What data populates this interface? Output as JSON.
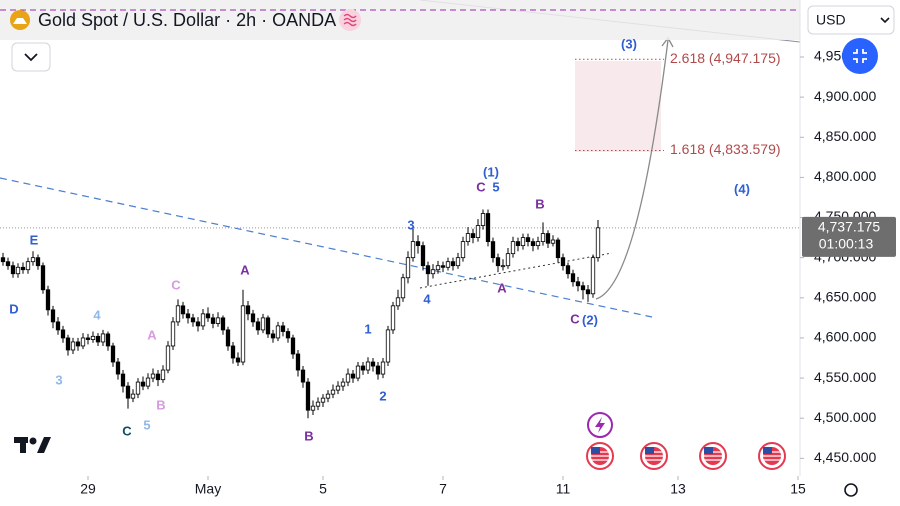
{
  "chart_data": {
    "type": "candlestick",
    "title": "Gold Spot / U.S. Dollar · 2h · OANDA",
    "currency": "USD",
    "up_color": "#ffffff",
    "down_color": "#000000",
    "wick_color": "#000000",
    "xlim": [
      -0.6,
      159.4
    ],
    "xticks": [
      {
        "value": 17,
        "label": "29"
      },
      {
        "value": 41,
        "label": "May"
      },
      {
        "value": 64,
        "label": "5"
      },
      {
        "value": 88,
        "label": "7"
      },
      {
        "value": 112,
        "label": "11"
      },
      {
        "value": 135,
        "label": "13"
      },
      {
        "value": 159,
        "label": "15"
      }
    ],
    "ylim": [
      4428,
      5021
    ],
    "yticks": [
      {
        "value": 4450,
        "label": "4,450.000"
      },
      {
        "value": 4500,
        "label": "4,500.000"
      },
      {
        "value": 4550,
        "label": "4,550.000"
      },
      {
        "value": 4600,
        "label": "4,600.000"
      },
      {
        "value": 4650,
        "label": "4,650.000"
      },
      {
        "value": 4700,
        "label": "4,700.000"
      },
      {
        "value": 4750,
        "label": "4,750.000"
      },
      {
        "value": 4800,
        "label": "4,800.000"
      },
      {
        "value": 4850,
        "label": "4,850.000"
      },
      {
        "value": 4900,
        "label": "4,900.000"
      },
      {
        "value": 4950,
        "label": "4,950.000"
      }
    ],
    "ohlc": [
      [
        4700,
        4706,
        4690,
        4695
      ],
      [
        4695,
        4700,
        4685,
        4690
      ],
      [
        4690,
        4695,
        4675,
        4680
      ],
      [
        4680,
        4693,
        4675,
        4688
      ],
      [
        4688,
        4694,
        4680,
        4685
      ],
      [
        4685,
        4700,
        4680,
        4695
      ],
      [
        4695,
        4708,
        4690,
        4700
      ],
      [
        4700,
        4704,
        4685,
        4690
      ],
      [
        4690,
        4694,
        4655,
        4660
      ],
      [
        4660,
        4665,
        4628,
        4635
      ],
      [
        4635,
        4640,
        4612,
        4620
      ],
      [
        4620,
        4626,
        4604,
        4610
      ],
      [
        4610,
        4615,
        4594,
        4600
      ],
      [
        4600,
        4604,
        4578,
        4585
      ],
      [
        4585,
        4600,
        4580,
        4595
      ],
      [
        4595,
        4600,
        4584,
        4590
      ],
      [
        4590,
        4606,
        4586,
        4600
      ],
      [
        4600,
        4605,
        4592,
        4598
      ],
      [
        4598,
        4608,
        4594,
        4602
      ],
      [
        4602,
        4606,
        4590,
        4595
      ],
      [
        4595,
        4610,
        4590,
        4605
      ],
      [
        4605,
        4608,
        4584,
        4590
      ],
      [
        4590,
        4594,
        4564,
        4570
      ],
      [
        4570,
        4575,
        4548,
        4555
      ],
      [
        4555,
        4560,
        4532,
        4540
      ],
      [
        4540,
        4545,
        4512,
        4525
      ],
      [
        4525,
        4536,
        4520,
        4530
      ],
      [
        4530,
        4550,
        4525,
        4545
      ],
      [
        4545,
        4552,
        4535,
        4540
      ],
      [
        4540,
        4556,
        4536,
        4550
      ],
      [
        4550,
        4562,
        4545,
        4555
      ],
      [
        4555,
        4560,
        4540,
        4548
      ],
      [
        4548,
        4566,
        4544,
        4560
      ],
      [
        4560,
        4596,
        4556,
        4590
      ],
      [
        4590,
        4626,
        4585,
        4620
      ],
      [
        4620,
        4648,
        4615,
        4640
      ],
      [
        4640,
        4645,
        4624,
        4630
      ],
      [
        4630,
        4636,
        4618,
        4625
      ],
      [
        4625,
        4630,
        4614,
        4620
      ],
      [
        4620,
        4626,
        4608,
        4615
      ],
      [
        4615,
        4636,
        4610,
        4630
      ],
      [
        4630,
        4638,
        4620,
        4625
      ],
      [
        4625,
        4630,
        4612,
        4618
      ],
      [
        4618,
        4632,
        4614,
        4625
      ],
      [
        4625,
        4628,
        4604,
        4610
      ],
      [
        4610,
        4614,
        4584,
        4590
      ],
      [
        4590,
        4595,
        4568,
        4575
      ],
      [
        4575,
        4582,
        4565,
        4570
      ],
      [
        4570,
        4660,
        4566,
        4640
      ],
      [
        4640,
        4646,
        4622,
        4630
      ],
      [
        4630,
        4635,
        4614,
        4620
      ],
      [
        4620,
        4625,
        4604,
        4610
      ],
      [
        4610,
        4630,
        4606,
        4625
      ],
      [
        4625,
        4628,
        4600,
        4605
      ],
      [
        4605,
        4610,
        4594,
        4600
      ],
      [
        4600,
        4620,
        4596,
        4615
      ],
      [
        4615,
        4620,
        4602,
        4608
      ],
      [
        4608,
        4612,
        4594,
        4600
      ],
      [
        4600,
        4604,
        4574,
        4580
      ],
      [
        4580,
        4585,
        4552,
        4560
      ],
      [
        4560,
        4565,
        4538,
        4545
      ],
      [
        4545,
        4550,
        4500,
        4510
      ],
      [
        4510,
        4522,
        4504,
        4515
      ],
      [
        4515,
        4526,
        4510,
        4520
      ],
      [
        4520,
        4530,
        4514,
        4525
      ],
      [
        4525,
        4535,
        4520,
        4530
      ],
      [
        4530,
        4542,
        4525,
        4535
      ],
      [
        4535,
        4546,
        4530,
        4540
      ],
      [
        4540,
        4550,
        4534,
        4545
      ],
      [
        4545,
        4562,
        4540,
        4555
      ],
      [
        4555,
        4560,
        4544,
        4550
      ],
      [
        4550,
        4570,
        4546,
        4565
      ],
      [
        4565,
        4570,
        4554,
        4560
      ],
      [
        4560,
        4576,
        4555,
        4570
      ],
      [
        4570,
        4575,
        4558,
        4565
      ],
      [
        4565,
        4570,
        4548,
        4555
      ],
      [
        4555,
        4575,
        4550,
        4570
      ],
      [
        4570,
        4615,
        4565,
        4610
      ],
      [
        4610,
        4645,
        4605,
        4640
      ],
      [
        4640,
        4660,
        4635,
        4650
      ],
      [
        4650,
        4680,
        4645,
        4675
      ],
      [
        4675,
        4708,
        4668,
        4700
      ],
      [
        4700,
        4740,
        4695,
        4720
      ],
      [
        4720,
        4728,
        4705,
        4715
      ],
      [
        4715,
        4720,
        4684,
        4690
      ],
      [
        4690,
        4695,
        4665,
        4680
      ],
      [
        4680,
        4692,
        4674,
        4685
      ],
      [
        4685,
        4696,
        4680,
        4690
      ],
      [
        4690,
        4695,
        4682,
        4688
      ],
      [
        4688,
        4700,
        4684,
        4695
      ],
      [
        4695,
        4700,
        4684,
        4690
      ],
      [
        4690,
        4706,
        4686,
        4700
      ],
      [
        4700,
        4726,
        4695,
        4720
      ],
      [
        4720,
        4738,
        4715,
        4730
      ],
      [
        4730,
        4736,
        4718,
        4725
      ],
      [
        4725,
        4748,
        4720,
        4740
      ],
      [
        4740,
        4760,
        4735,
        4755
      ],
      [
        4755,
        4760,
        4714,
        4720
      ],
      [
        4720,
        4725,
        4694,
        4700
      ],
      [
        4700,
        4705,
        4682,
        4690
      ],
      [
        4690,
        4698,
        4684,
        4690
      ],
      [
        4690,
        4712,
        4686,
        4705
      ],
      [
        4705,
        4726,
        4700,
        4720
      ],
      [
        4720,
        4725,
        4708,
        4715
      ],
      [
        4715,
        4730,
        4710,
        4725
      ],
      [
        4725,
        4730,
        4714,
        4720
      ],
      [
        4720,
        4724,
        4708,
        4715
      ],
      [
        4715,
        4726,
        4710,
        4720
      ],
      [
        4720,
        4744,
        4715,
        4730
      ],
      [
        4730,
        4734,
        4712,
        4718
      ],
      [
        4718,
        4728,
        4714,
        4722
      ],
      [
        4722,
        4725,
        4694,
        4700
      ],
      [
        4700,
        4705,
        4684,
        4690
      ],
      [
        4690,
        4694,
        4674,
        4680
      ],
      [
        4680,
        4685,
        4664,
        4670
      ],
      [
        4670,
        4676,
        4658,
        4665
      ],
      [
        4665,
        4670,
        4648,
        4660
      ],
      [
        4660,
        4666,
        4645,
        4655
      ],
      [
        4655,
        4704,
        4650,
        4700
      ],
      [
        4700,
        4747,
        4695,
        4737.175
      ]
    ],
    "last_price": {
      "value": 4737.175,
      "label": "4,737.175"
    },
    "countdown": "01:00:13",
    "fib_levels": [
      {
        "label": "2.618 (4,947.175)",
        "price": 4947.175,
        "color": "#b04a4a"
      },
      {
        "label": "1.618 (4,833.579)",
        "price": 4833.579,
        "color": "#b04a4a"
      }
    ],
    "wave_labels": [
      {
        "text": "E",
        "color": "#2f5fd0"
      },
      {
        "text": "D",
        "color": "#2f5fd0"
      },
      {
        "text": "4",
        "color": "#90b8e8"
      },
      {
        "text": "3",
        "color": "#90b8e8"
      },
      {
        "text": "C",
        "color": "#0d4f5c"
      },
      {
        "text": "5",
        "color": "#90b8e8"
      },
      {
        "text": "A",
        "color": "#d79be0"
      },
      {
        "text": "B",
        "color": "#d79be0"
      },
      {
        "text": "C",
        "color": "#d79be0"
      },
      {
        "text": "A",
        "color": "#7b2fa0"
      },
      {
        "text": "B",
        "color": "#7b2fa0"
      },
      {
        "text": "1",
        "color": "#2f5fd0"
      },
      {
        "text": "2",
        "color": "#2f5fd0"
      },
      {
        "text": "3",
        "color": "#2f5fd0"
      },
      {
        "text": "4",
        "color": "#2f5fd0"
      },
      {
        "text": "(1)",
        "color": "#2f5fd0"
      },
      {
        "text": "C",
        "color": "#7b2fa0"
      },
      {
        "text": "5",
        "color": "#2f5fd0"
      },
      {
        "text": "B",
        "color": "#7b2fa0"
      },
      {
        "text": "A",
        "color": "#7b2fa0"
      },
      {
        "text": "C",
        "color": "#7b2fa0"
      },
      {
        "text": "(2)",
        "color": "#2f5fd0"
      },
      {
        "text": "(3)",
        "color": "#2f5fd0"
      },
      {
        "text": "(4)",
        "color": "#2f5fd0"
      }
    ]
  }
}
